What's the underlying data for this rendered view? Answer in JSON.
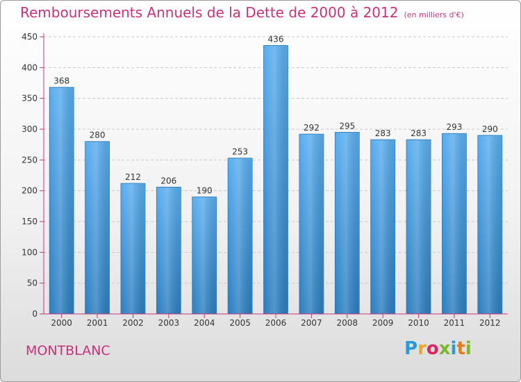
{
  "title": "Remboursements Annuels de la Dette de 2000 à 2012",
  "subtitle": "(en milliers d'€)",
  "commune": "MONTBLANC",
  "logo": {
    "letters": [
      "P",
      "r",
      "o",
      "x",
      "i",
      "t",
      "i"
    ],
    "colors": [
      "#2a9ad6",
      "#f5a623",
      "#e0245e",
      "#7cb82f",
      "#2a9ad6",
      "#e57b1f",
      "#7cb82f"
    ]
  },
  "colors": {
    "bar": "#3f97d8",
    "bar_light": "#5aaef0",
    "title": "#c8317a",
    "axis": "#c8317a"
  },
  "chart_data": {
    "type": "bar",
    "title": "Remboursements Annuels de la Dette de 2000 à 2012",
    "subtitle": "(en milliers d'€)",
    "categories": [
      "2000",
      "2001",
      "2002",
      "2003",
      "2004",
      "2005",
      "2006",
      "2007",
      "2008",
      "2009",
      "2010",
      "2011",
      "2012"
    ],
    "values": [
      368,
      280,
      212,
      206,
      190,
      253,
      436,
      292,
      295,
      283,
      283,
      293,
      290
    ],
    "ylim": [
      0,
      450
    ],
    "yticks": [
      0,
      50,
      100,
      150,
      200,
      250,
      300,
      350,
      400,
      450
    ],
    "grid": true
  }
}
